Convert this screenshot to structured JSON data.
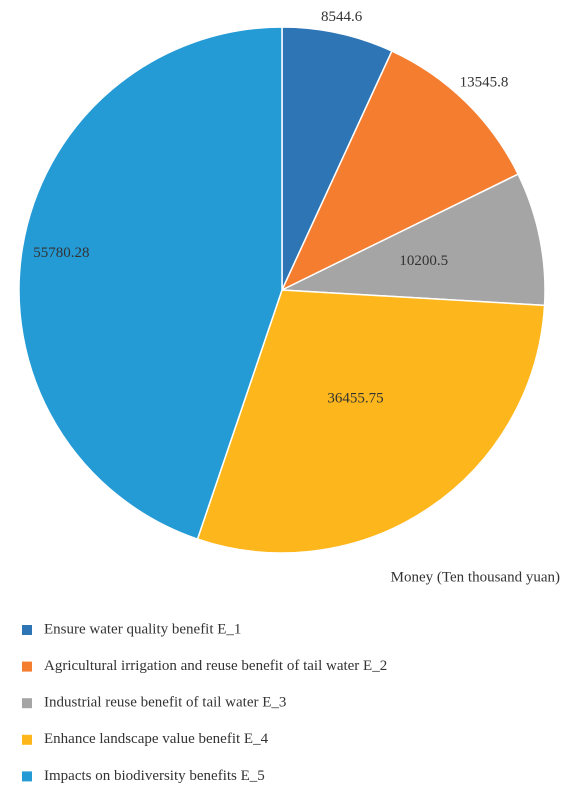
{
  "chart_data": {
    "type": "pie",
    "categories": [
      "Ensure water quality benefit E_1",
      "Agricultural irrigation and reuse benefit of tail water E_2",
      "Industrial reuse benefit of tail water E_3",
      "Enhance landscape value benefit E_4",
      "Impacts on biodiversity benefits E_5"
    ],
    "values": [
      8544.6,
      13545.8,
      10200.5,
      36455.75,
      55780.28
    ],
    "colors": [
      "#2e75b6",
      "#f47d30",
      "#a5a5a5",
      "#fdb71c",
      "#259bd6"
    ],
    "axis_label": "Money (Ten thousand yuan)",
    "legend": "bottom-left"
  }
}
